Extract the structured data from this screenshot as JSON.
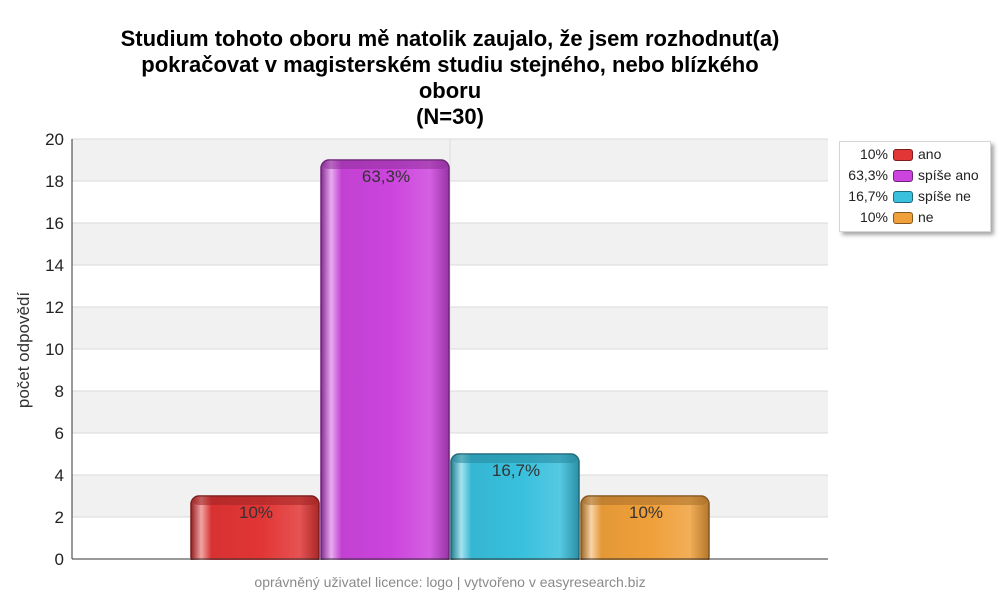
{
  "chart_data": {
    "type": "bar",
    "title": "Studium tohoto oboru mě natolik zaujalo, že jsem rozhodnut(a) pokračovat v magisterském studiu stejného, nebo blízkého oboru (N=30)",
    "title_lines": [
      "Studium tohoto oboru mě natolik zaujalo, že jsem rozhodnut(a)",
      "pokračovat v magisterském studiu stejného, nebo blízkého",
      "oboru",
      "(N=30)"
    ],
    "ylabel": "počet odpovědí",
    "xlabel": "",
    "ylim": [
      0,
      20
    ],
    "yticks": [
      "0",
      "2",
      "4",
      "6",
      "8",
      "10",
      "12",
      "14",
      "16",
      "18",
      "20"
    ],
    "grid": true,
    "legend_position": "top-right",
    "categories": [
      "ano",
      "spíše ano",
      "spíše ne",
      "ne"
    ],
    "values": [
      3,
      19,
      5,
      3
    ],
    "data_labels": [
      "10%",
      "63,3%",
      "16,7%",
      "10%"
    ],
    "colors": [
      "#e23535",
      "#cc44dd",
      "#38c0dd",
      "#f0a03a"
    ]
  },
  "legend": {
    "items": [
      {
        "pct": "10%",
        "label": "ano",
        "color": "#e23535"
      },
      {
        "pct": "63,3%",
        "label": "spíše ano",
        "color": "#cc44dd"
      },
      {
        "pct": "16,7%",
        "label": "spíše ne",
        "color": "#38c0dd"
      },
      {
        "pct": "10%",
        "label": "ne",
        "color": "#f0a03a"
      }
    ]
  },
  "footer": {
    "text": "oprávněný uživatel licence: logo | vytvořeno v easyresearch.biz"
  }
}
